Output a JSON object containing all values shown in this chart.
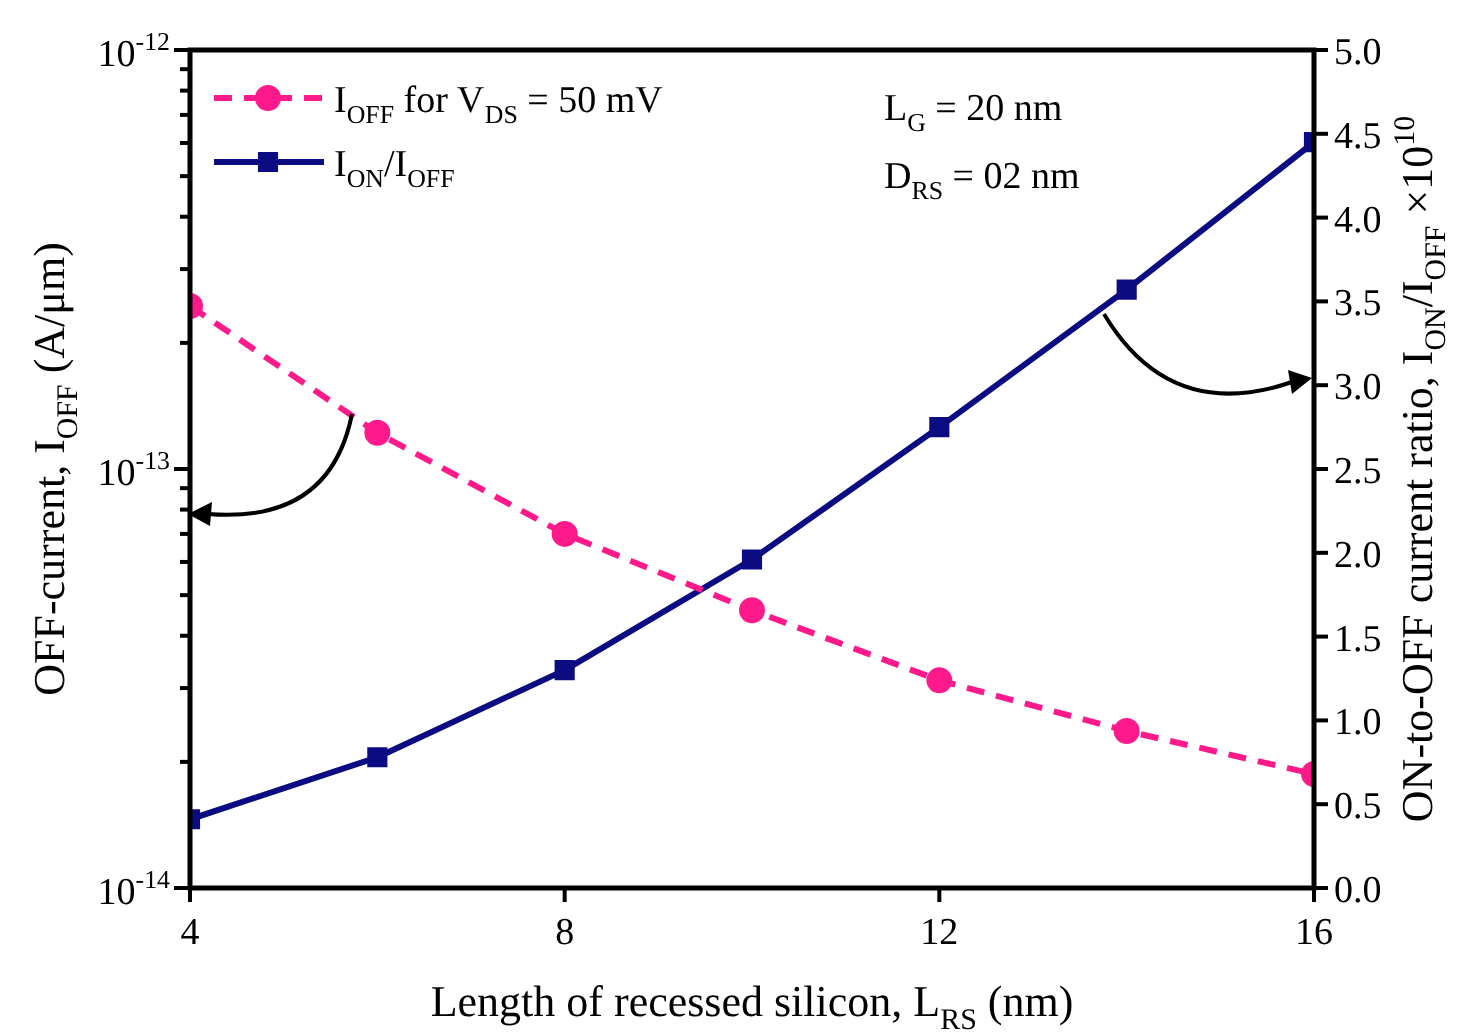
{
  "chart_data": {
    "type": "line",
    "xlabel": "Length of recessed silicon, L$_{RS}$ (nm)",
    "ylabel": "OFF-current, I$_{OFF}$ (A/μm)",
    "y2label": "ON-to-OFF current ratio, I$_{ON}$/I$_{OFF}$ ×10$^{10}$",
    "x": [
      4,
      6,
      8,
      10,
      12,
      14,
      16
    ],
    "xlim": [
      4,
      16
    ],
    "xticks": [
      4,
      8,
      12,
      16
    ],
    "ylim": [
      1e-14,
      1e-12
    ],
    "yticks": [
      {
        "value": 1e-14,
        "label": "10$^{-14}$"
      },
      {
        "value": 1e-13,
        "label": "10$^{-13}$"
      },
      {
        "value": 1e-12,
        "label": "10$^{-12}$"
      }
    ],
    "y2lim": [
      0,
      5
    ],
    "y2ticks": [
      {
        "value": 0,
        "label": "0.0"
      },
      {
        "value": 0.5,
        "label": "0.5"
      },
      {
        "value": 1,
        "label": "1.0"
      },
      {
        "value": 1.5,
        "label": "1.5"
      },
      {
        "value": 2,
        "label": "2.0"
      },
      {
        "value": 2.5,
        "label": "2.5"
      },
      {
        "value": 3,
        "label": "3.0"
      },
      {
        "value": 3.5,
        "label": "3.5"
      },
      {
        "value": 4,
        "label": "4.0"
      },
      {
        "value": 4.5,
        "label": "4.5"
      },
      {
        "value": 5,
        "label": "5.0"
      }
    ],
    "log": "y",
    "legend": "top left",
    "series": [
      {
        "name": "I$_{OFF}$ for V$_{DS}$ = 50 mV",
        "color": "#ff1a8c",
        "marker": "circle",
        "line_style": "dashed",
        "values": [
          2.45e-13,
          1.22e-13,
          7e-14,
          4.6e-14,
          3.13e-14,
          2.37e-14,
          1.87e-14
        ]
      },
      {
        "name": "I$_{ON}$/I$_{OFF}$",
        "color": "#0c0c82",
        "marker": "square",
        "line_style": "solid",
        "axis": "y2",
        "values": [
          0.41,
          0.78,
          1.3,
          1.96,
          2.75,
          3.57,
          4.45
        ]
      }
    ],
    "annotations": [
      "L$_{G}$ = 20 nm",
      "D$_{RS}$ = 02 nm"
    ]
  }
}
